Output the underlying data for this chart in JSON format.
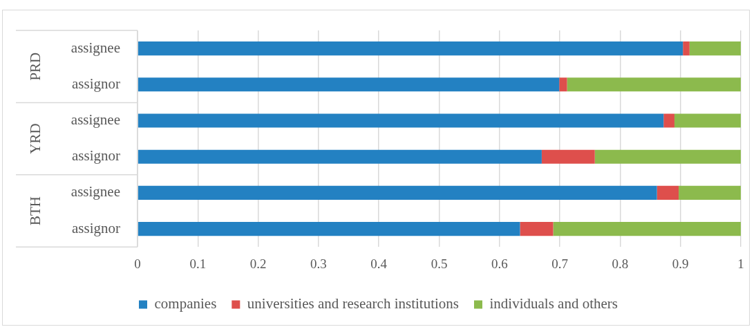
{
  "chart_data": {
    "type": "bar",
    "orientation": "horizontal",
    "stacked": true,
    "categories": [
      "assignee",
      "assignor",
      "assignee",
      "assignor",
      "assignee",
      "assignor"
    ],
    "series": [
      {
        "name": "companies",
        "color": "#2381c2",
        "values": [
          0.904,
          0.699,
          0.872,
          0.67,
          0.861,
          0.634
        ]
      },
      {
        "name": "universities and research institutions",
        "color": "#de4f4c",
        "values": [
          0.011,
          0.013,
          0.018,
          0.088,
          0.036,
          0.055
        ]
      },
      {
        "name": "individuals and others",
        "color": "#8cba4d",
        "values": [
          0.085,
          0.288,
          0.11,
          0.242,
          0.103,
          0.311
        ]
      }
    ],
    "annotations": [
      "PRD",
      "YRD",
      "BTH"
    ],
    "xlim": [
      0,
      1
    ],
    "xticks": [
      0,
      0.1,
      0.2,
      0.3,
      0.4,
      0.5,
      0.6,
      0.7,
      0.8,
      0.9,
      1
    ],
    "grid": "x",
    "legend": "bottom"
  }
}
